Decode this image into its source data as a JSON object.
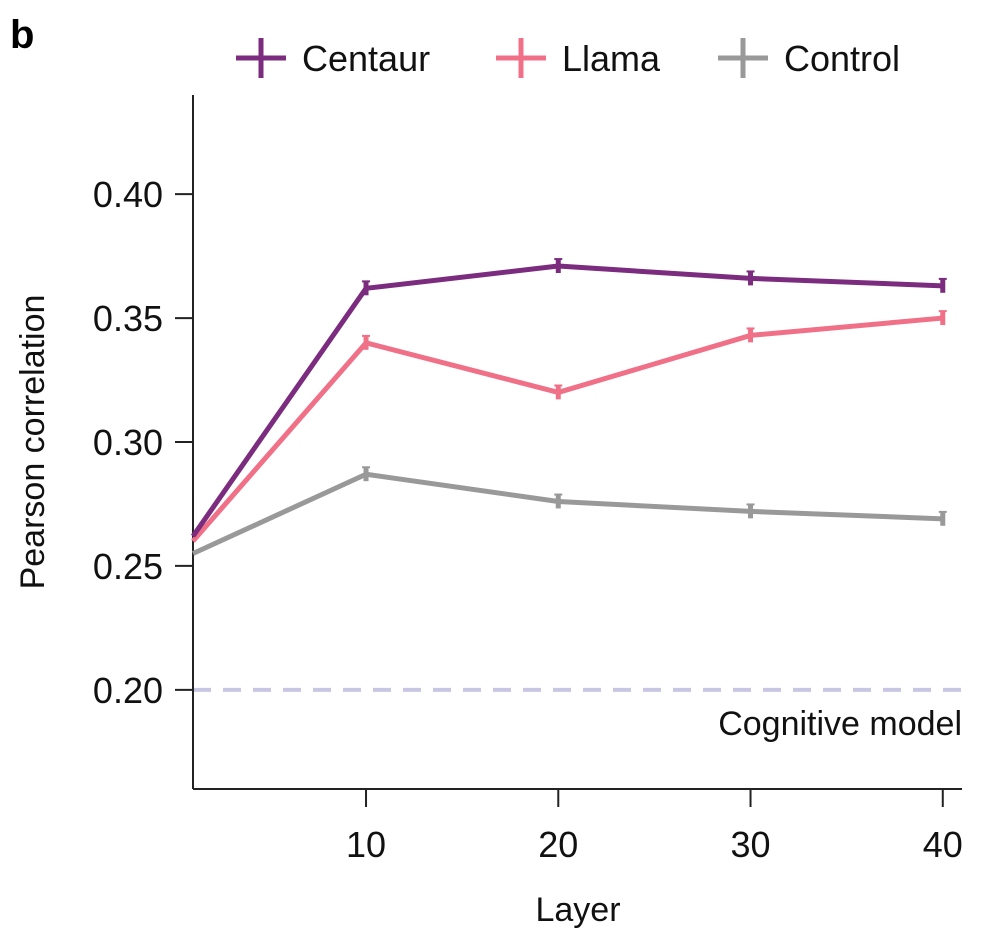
{
  "panel_label": "b",
  "chart_data": {
    "type": "line",
    "x": [
      1,
      10,
      20,
      30,
      40
    ],
    "series": [
      {
        "name": "Centaur",
        "color": "#7B2C7E",
        "values": [
          0.262,
          0.362,
          0.371,
          0.366,
          0.363
        ],
        "errors": [
          0.002,
          0.002,
          0.002,
          0.002,
          0.002
        ]
      },
      {
        "name": "Llama",
        "color": "#F07088",
        "values": [
          0.26,
          0.34,
          0.32,
          0.343,
          0.35
        ],
        "errors": [
          0.002,
          0.002,
          0.002,
          0.002,
          0.002
        ]
      },
      {
        "name": "Control",
        "color": "#999999",
        "values": [
          0.255,
          0.287,
          0.276,
          0.272,
          0.269
        ],
        "errors": [
          0.002,
          0.002,
          0.002,
          0.002,
          0.002
        ]
      }
    ],
    "reference_line": {
      "label": "Cognitive model",
      "value": 0.2,
      "color": "#C9C6E3"
    },
    "xlabel": "Layer",
    "ylabel": "Pearson correlation",
    "xticks": [
      10,
      20,
      30,
      40
    ],
    "xtick_labels": [
      "10",
      "20",
      "30",
      "40"
    ],
    "yticks": [
      0.2,
      0.25,
      0.3,
      0.35,
      0.4
    ],
    "ytick_labels": [
      "0.20",
      "0.25",
      "0.30",
      "0.35",
      "0.40"
    ],
    "xlim": [
      1,
      41
    ],
    "ylim": [
      0.16,
      0.44
    ],
    "legend_position": "top"
  }
}
